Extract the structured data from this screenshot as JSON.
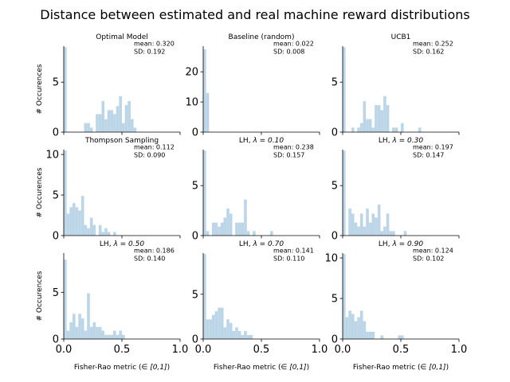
{
  "chart_data": {
    "type": "bar",
    "title": "Distance between estimated and real machine reward distributions",
    "xlabel": "Fisher-Rao metric ($\\in [0,1]$)",
    "ylabel": "# Occurences",
    "xlim": [
      0,
      1
    ],
    "xticks": [
      "0.0",
      "0.5",
      "1.0"
    ],
    "bin_width": 0.025,
    "panels": [
      {
        "title": "Optimal Model",
        "mean": "mean: 0.320",
        "sd": "SD: 0.192",
        "ylim": [
          0,
          8.6
        ],
        "yticks": [
          0,
          5
        ],
        "values": [
          8.5,
          0,
          0,
          0,
          0,
          0,
          0,
          0.9,
          0.9,
          0.45,
          0,
          1.8,
          1.8,
          3.1,
          1.3,
          2.2,
          2.2,
          1.8,
          2.6,
          3.6,
          0.9,
          2.7,
          3.1,
          1.3,
          0.45
        ]
      },
      {
        "title": "Baseline (random)",
        "mean": "mean: 0.022",
        "sd": "SD: 0.008",
        "ylim": [
          0,
          28.5
        ],
        "yticks": [
          0,
          10,
          20
        ],
        "values": [
          27.5,
          13
        ]
      },
      {
        "title": "UCB1",
        "mean": "mean: 0.252",
        "sd": "SD: 0.162",
        "ylim": [
          0,
          8.6
        ],
        "yticks": [
          0,
          5
        ],
        "values": [
          8.5,
          0,
          0,
          0.45,
          0,
          0.45,
          0.9,
          3.1,
          1.3,
          1.3,
          0.45,
          2.7,
          2.7,
          2.2,
          3.6,
          2.7,
          0,
          0.45,
          0.45,
          0,
          0.9,
          0,
          0,
          0,
          0,
          0,
          0.45
        ]
      },
      {
        "title": "Thompson Sampling",
        "mean": "mean: 0.112",
        "sd": "SD: 0.090",
        "ylim": [
          0,
          10.6
        ],
        "yticks": [
          0,
          5,
          10
        ],
        "values": [
          10.5,
          2.7,
          3.5,
          4,
          3.5,
          3.1,
          4.9,
          1.3,
          0.9,
          2.2,
          1.3,
          0,
          1.3,
          0.45,
          0.9,
          0.45,
          0,
          0.45
        ]
      },
      {
        "title": "LH, $\\lambda = 0.10$",
        "mean": "mean: 0.238",
        "sd": "SD: 0.157",
        "ylim": [
          0,
          8.6
        ],
        "yticks": [
          0,
          5
        ],
        "values": [
          8.5,
          0.45,
          0,
          1.3,
          1.3,
          0.9,
          1.3,
          1.8,
          2.7,
          2.2,
          0,
          1.3,
          1.3,
          1.3,
          3.6,
          0.45,
          0,
          0.45,
          0,
          0,
          0,
          0,
          0,
          0.45
        ]
      },
      {
        "title": "LH, $\\lambda = 0.30$",
        "mean": "mean: 0.197",
        "sd": "SD: 0.147",
        "ylim": [
          0,
          8.6
        ],
        "yticks": [
          0,
          5
        ],
        "values": [
          8.5,
          0,
          2.7,
          2.2,
          1.3,
          0.9,
          2.2,
          0.9,
          2.7,
          1.3,
          2.2,
          1.8,
          3.1,
          0.45,
          0.9,
          2.2,
          0.45,
          0.45,
          0,
          0,
          0,
          0.45
        ]
      },
      {
        "title": "LH, $\\lambda = 0.50$",
        "mean": "mean: 0.186",
        "sd": "SD: 0.140",
        "ylim": [
          0,
          9.2
        ],
        "yticks": [
          0,
          5
        ],
        "values": [
          8.5,
          0.9,
          1.8,
          2.7,
          1.3,
          2.7,
          2.2,
          0.9,
          4.9,
          1.3,
          1.8,
          1.3,
          1.3,
          0.9,
          0.45,
          0.45,
          0.45,
          0.9,
          0.45,
          0.9,
          0.45
        ]
      },
      {
        "title": "LH, $\\lambda = 0.70$",
        "mean": "mean: 0.141",
        "sd": "SD: 0.110",
        "ylim": [
          0,
          9.6
        ],
        "yticks": [
          0,
          5
        ],
        "values": [
          9.5,
          2.2,
          2.2,
          2.7,
          3.1,
          3.5,
          3.5,
          1.3,
          2.2,
          1.8,
          0.9,
          1.3,
          0.9,
          0.45,
          0.9,
          0.45,
          0.45
        ]
      },
      {
        "title": "LH, $\\lambda = 0.90$",
        "mean": "mean: 0.124",
        "sd": "SD: 0.102",
        "ylim": [
          0,
          10.6
        ],
        "yticks": [
          0,
          5,
          10
        ],
        "values": [
          10.5,
          2.7,
          3.5,
          3.1,
          2.2,
          2.7,
          3.5,
          2.2,
          0.9,
          0.9,
          0.9,
          0,
          0,
          0.45,
          0,
          0,
          0,
          0,
          0,
          0.45,
          0.45
        ]
      }
    ]
  }
}
